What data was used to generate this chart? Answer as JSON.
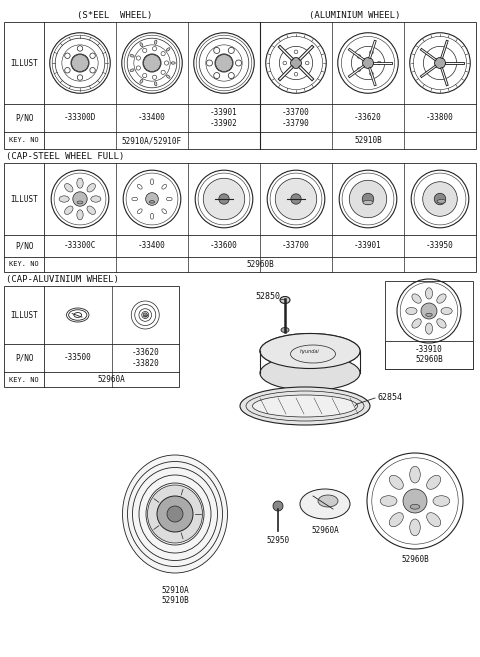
{
  "bg_color": "#ffffff",
  "line_color": "#222222",
  "text_color": "#111111",
  "section1_header_left": "(S*EEL  WHEEL)",
  "section1_header_right": "(ALUMINIUM WHEEL)",
  "section2_header": "(CAP-STEEL WHEEL FULL)",
  "section3_header": "(CAP-ALUVINIUM WHEEL)",
  "row1_pnos": [
    "-33300D",
    "-33400",
    "-33901\n-33902",
    "-33700\n-33790",
    "-33620",
    "-33800"
  ],
  "row1_keyno_left": "52910A/52910F",
  "row1_keyno_right": "52910B",
  "row2_pnos": [
    "-33300C",
    "-33400",
    "-33600",
    "-33700",
    "-33901",
    "-33950"
  ],
  "row2_keyno": "52960B",
  "row3_pnos_left": [
    "-33500",
    "-33620\n-33820"
  ],
  "row3_keyno": "52960A",
  "row3_pno_right": "-33910",
  "row3_keyno_right": "52960B",
  "part_52850": "52850",
  "part_62854": "62854",
  "font_size_header": 6.5,
  "font_size_label": 5.5,
  "font_size_pno": 5.5,
  "font_size_keyno": 5.5
}
